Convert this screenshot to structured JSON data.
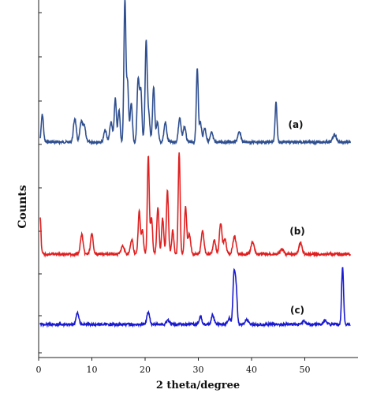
{
  "chart_data": {
    "type": "line",
    "title": "",
    "xlabel": "2 theta/degree",
    "ylabel": "Counts",
    "xlim": [
      0,
      60
    ],
    "x_ticks": [
      0,
      10,
      20,
      30,
      40,
      50
    ],
    "grid": false,
    "colors": {
      "a": "#2f4f8f",
      "b": "#e02020",
      "c": "#1a1ad0"
    },
    "series": [
      {
        "name": "(a)",
        "color": "#2f4f8f",
        "baseline": 180,
        "peaks": [
          [
            0.7,
            35,
            0.2
          ],
          [
            6.8,
            30,
            0.25
          ],
          [
            8.0,
            25,
            0.25
          ],
          [
            8.6,
            20,
            0.25
          ],
          [
            12.5,
            15,
            0.25
          ],
          [
            13.6,
            25,
            0.25
          ],
          [
            14.4,
            55,
            0.2
          ],
          [
            15.1,
            40,
            0.2
          ],
          [
            16.2,
            178,
            0.18
          ],
          [
            16.7,
            75,
            0.2
          ],
          [
            17.4,
            50,
            0.2
          ],
          [
            18.7,
            80,
            0.2
          ],
          [
            19.2,
            65,
            0.2
          ],
          [
            20.2,
            128,
            0.2
          ],
          [
            20.7,
            35,
            0.2
          ],
          [
            21.6,
            70,
            0.2
          ],
          [
            22.3,
            25,
            0.2
          ],
          [
            23.8,
            25,
            0.25
          ],
          [
            26.5,
            30,
            0.25
          ],
          [
            27.4,
            20,
            0.25
          ],
          [
            29.8,
            95,
            0.18
          ],
          [
            30.4,
            25,
            0.2
          ],
          [
            31.2,
            18,
            0.25
          ],
          [
            32.5,
            12,
            0.25
          ],
          [
            37.7,
            12,
            0.3
          ],
          [
            44.6,
            50,
            0.18
          ],
          [
            55.6,
            10,
            0.3
          ]
        ]
      },
      {
        "name": "(b)",
        "color": "#e02020",
        "baseline": 322,
        "peaks": [
          [
            0.3,
            45,
            0.15
          ],
          [
            8.1,
            25,
            0.25
          ],
          [
            10.0,
            25,
            0.25
          ],
          [
            15.8,
            10,
            0.3
          ],
          [
            17.5,
            18,
            0.25
          ],
          [
            18.9,
            55,
            0.2
          ],
          [
            19.5,
            30,
            0.2
          ],
          [
            20.6,
            125,
            0.18
          ],
          [
            21.2,
            45,
            0.2
          ],
          [
            22.4,
            60,
            0.2
          ],
          [
            23.3,
            45,
            0.2
          ],
          [
            24.2,
            80,
            0.2
          ],
          [
            25.2,
            30,
            0.2
          ],
          [
            26.4,
            130,
            0.18
          ],
          [
            27.6,
            60,
            0.2
          ],
          [
            28.3,
            25,
            0.25
          ],
          [
            30.8,
            30,
            0.25
          ],
          [
            33.0,
            18,
            0.25
          ],
          [
            34.2,
            38,
            0.25
          ],
          [
            35.0,
            20,
            0.25
          ],
          [
            36.8,
            22,
            0.3
          ],
          [
            40.2,
            15,
            0.3
          ],
          [
            45.7,
            6,
            0.3
          ],
          [
            49.2,
            14,
            0.3
          ]
        ]
      },
      {
        "name": "(c)",
        "color": "#1a1ad0",
        "baseline": 411,
        "peaks": [
          [
            7.3,
            15,
            0.25
          ],
          [
            20.6,
            16,
            0.25
          ],
          [
            24.3,
            5,
            0.3
          ],
          [
            30.4,
            10,
            0.25
          ],
          [
            32.7,
            12,
            0.25
          ],
          [
            35.8,
            8,
            0.25
          ],
          [
            36.7,
            62,
            0.2
          ],
          [
            37.1,
            45,
            0.2
          ],
          [
            39.1,
            6,
            0.3
          ],
          [
            49.8,
            4,
            0.3
          ],
          [
            53.8,
            5,
            0.3
          ],
          [
            57.1,
            74,
            0.18
          ]
        ]
      }
    ]
  }
}
